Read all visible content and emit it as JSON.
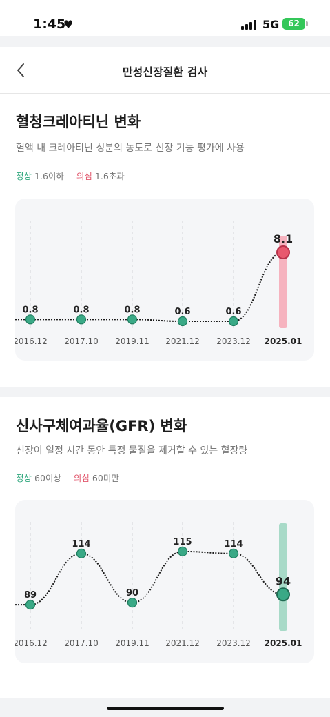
{
  "status_bar": {
    "time": "1:45",
    "network": "5G",
    "battery": "62"
  },
  "header": {
    "title": "만성신장질환 검사"
  },
  "sections": [
    {
      "title": "혈청크레아티닌 변화",
      "description": "혈액 내 크레아티닌 성분의 농도로 신장 기능 평가에 사용",
      "normal_label": "정상",
      "normal_value": "1.6이하",
      "suspect_label": "의심",
      "suspect_value": "1.6초과"
    },
    {
      "title": "신사구체여과율(GFR) 변화",
      "description": "신장이 일정 시간 동안 특정 물질을 제거할 수 있는 혈장량",
      "normal_label": "정상",
      "normal_value": "60이상",
      "suspect_label": "의심",
      "suspect_value": "60미만"
    }
  ],
  "chart_data": [
    {
      "type": "line",
      "categories": [
        "2016.12",
        "2017.10",
        "2019.11",
        "2021.12",
        "2023.12",
        "2025.01"
      ],
      "values": [
        0.8,
        0.8,
        0.8,
        0.6,
        0.6,
        8.1
      ],
      "labels": [
        "0.8",
        "0.8",
        "0.8",
        "0.6",
        "0.6",
        "8.1"
      ],
      "ylim": [
        0,
        9
      ],
      "highlight_index": 5,
      "colors": {
        "normal": "#3aa986",
        "normal_stroke": "#1f7d5f",
        "highlight": "#e8586e",
        "highlight_stroke": "#b8324a",
        "highlight_bar": "#f6b3bf"
      }
    },
    {
      "type": "line",
      "categories": [
        "2016.12",
        "2017.10",
        "2019.11",
        "2021.12",
        "2023.12",
        "2025.01"
      ],
      "values": [
        89,
        114,
        90,
        115,
        114,
        94
      ],
      "labels": [
        "89",
        "114",
        "90",
        "115",
        "114",
        "94"
      ],
      "ylim": [
        85,
        118
      ],
      "highlight_index": 5,
      "colors": {
        "normal": "#3aa986",
        "normal_stroke": "#1f7d5f",
        "highlight": "#3aa986",
        "highlight_stroke": "#1f6b52",
        "highlight_bar": "#a8dac8"
      }
    }
  ]
}
